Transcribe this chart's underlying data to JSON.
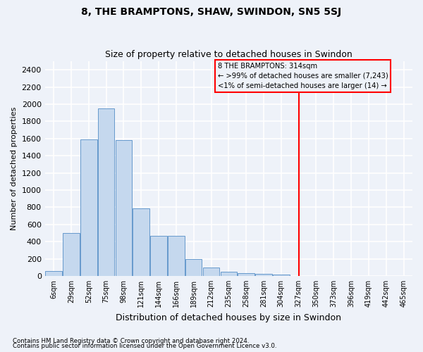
{
  "title": "8, THE BRAMPTONS, SHAW, SWINDON, SN5 5SJ",
  "subtitle": "Size of property relative to detached houses in Swindon",
  "xlabel": "Distribution of detached houses by size in Swindon",
  "ylabel": "Number of detached properties",
  "footnote1": "Contains HM Land Registry data © Crown copyright and database right 2024.",
  "footnote2": "Contains public sector information licensed under the Open Government Licence v3.0.",
  "bar_labels": [
    "6sqm",
    "29sqm",
    "52sqm",
    "75sqm",
    "98sqm",
    "121sqm",
    "144sqm",
    "166sqm",
    "189sqm",
    "212sqm",
    "235sqm",
    "258sqm",
    "281sqm",
    "304sqm",
    "327sqm",
    "350sqm",
    "373sqm",
    "396sqm",
    "419sqm",
    "442sqm",
    "465sqm"
  ],
  "bar_values": [
    60,
    500,
    1590,
    1950,
    1580,
    790,
    470,
    470,
    200,
    95,
    45,
    30,
    20,
    15,
    0,
    0,
    0,
    0,
    0,
    0,
    0
  ],
  "bar_color": "#c5d8ee",
  "bar_edgecolor": "#6699cc",
  "vline_x": 14.0,
  "vline_color": "red",
  "annotation_text": "8 THE BRAMPTONS: 314sqm\n← >99% of detached houses are smaller (7,243)\n<1% of semi-detached houses are larger (14) →",
  "annotation_box_color": "red",
  "ylim": [
    0,
    2500
  ],
  "yticks": [
    0,
    200,
    400,
    600,
    800,
    1000,
    1200,
    1400,
    1600,
    1800,
    2000,
    2200,
    2400
  ],
  "bg_color": "#eef2f9",
  "grid_color": "white",
  "title_fontsize": 10,
  "subtitle_fontsize": 9
}
